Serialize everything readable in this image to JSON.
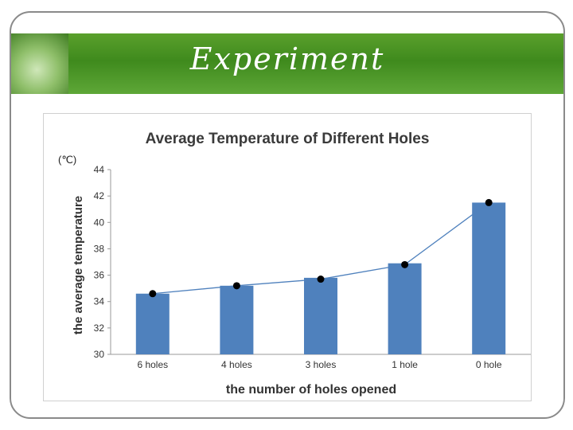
{
  "slide": {
    "title": "Experiment"
  },
  "chart_data": {
    "type": "bar",
    "title": "Average Temperature of Different Holes",
    "xlabel": "the number of holes opened",
    "ylabel": "the average temperature",
    "unit": "(℃)",
    "categories": [
      "6 holes",
      "4 holes",
      "3 holes",
      "1 hole",
      "0 hole"
    ],
    "values": [
      34.6,
      35.2,
      35.8,
      36.9,
      41.5
    ],
    "trend_line": [
      34.6,
      35.2,
      35.7,
      36.8,
      41.5
    ],
    "ylim": [
      30,
      44
    ],
    "yticks": [
      30,
      32,
      34,
      36,
      38,
      40,
      42,
      44
    ],
    "grid": false,
    "legend": "none",
    "colors": {
      "bar": "#4f81bd",
      "line": "#4f81bd",
      "marker": "#000000"
    }
  }
}
